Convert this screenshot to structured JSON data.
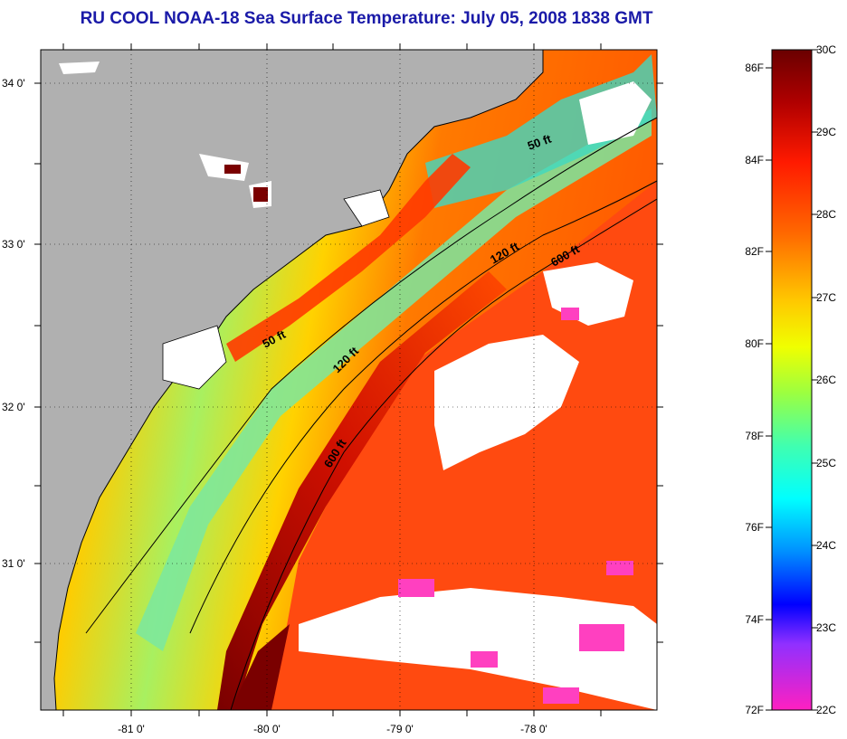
{
  "title": "RU COOL  NOAA-18  Sea Surface Temperature:  July 05, 2008 1838 GMT",
  "lat_labels": [
    "34 0'",
    "33 0'",
    "32 0'",
    "31 0'"
  ],
  "lon_labels": [
    "-81 0'",
    "-80 0'",
    "-79 0'",
    "-78 0'"
  ],
  "contours": [
    "50 ft",
    "120 ft",
    "600 ft",
    "50 ft",
    "120 ft",
    "600 ft"
  ],
  "colorbar": {
    "fahrenheit": [
      "86F",
      "84F",
      "82F",
      "80F",
      "78F",
      "76F",
      "74F",
      "72F"
    ],
    "celsius": [
      "30C",
      "29C",
      "28C",
      "27C",
      "26C",
      "25C",
      "24C",
      "23C",
      "22C"
    ]
  },
  "colors": {
    "land": "#b0b0b0",
    "cloud": "#ffffff",
    "title": "#1a1aa8",
    "warm": "#e02000",
    "gulfstream": "#7a0000",
    "shelf_cool": "#40d0b0",
    "mid": "#ffcc00"
  }
}
